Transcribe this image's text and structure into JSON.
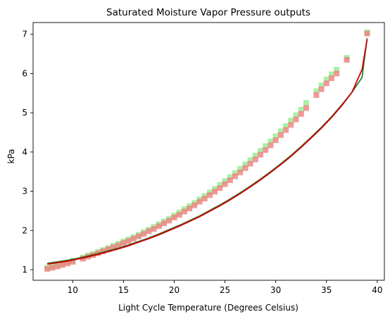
{
  "chart_data": {
    "type": "scatter",
    "title": "Saturated Moisture Vapor Pressure outputs",
    "xlabel": "Light Cycle Temperature (Degrees Celsius)",
    "ylabel": "kPa",
    "xlim": [
      6.1,
      40.7
    ],
    "ylim": [
      0.73,
      7.3
    ],
    "xticks": [
      10,
      15,
      20,
      25,
      30,
      35,
      40
    ],
    "yticks": [
      1,
      2,
      3,
      4,
      5,
      6,
      7
    ],
    "grid": false,
    "series": [
      {
        "kind": "scatter",
        "color": "#90ee90",
        "x": [
          7.5,
          8.0,
          8.5,
          9.0,
          9.5,
          10.0,
          11.0,
          11.5,
          12.0,
          12.5,
          13.0,
          13.5,
          14.0,
          14.5,
          15.0,
          15.5,
          16.0,
          16.5,
          17.0,
          17.5,
          18.0,
          18.5,
          19.0,
          19.5,
          20.0,
          20.5,
          21.0,
          21.5,
          22.0,
          22.5,
          23.0,
          23.5,
          24.0,
          24.5,
          25.0,
          25.5,
          26.0,
          26.5,
          27.0,
          27.5,
          28.0,
          28.5,
          29.0,
          29.5,
          30.0,
          30.5,
          31.0,
          31.5,
          32.0,
          32.5,
          33.0,
          34.0,
          34.5,
          35.0,
          35.5,
          36.0,
          37.0,
          39.0
        ],
        "y": [
          1.05,
          1.08,
          1.11,
          1.15,
          1.19,
          1.23,
          1.31,
          1.36,
          1.4,
          1.45,
          1.5,
          1.55,
          1.61,
          1.66,
          1.72,
          1.77,
          1.83,
          1.89,
          1.96,
          2.02,
          2.09,
          2.16,
          2.23,
          2.3,
          2.38,
          2.46,
          2.54,
          2.62,
          2.7,
          2.79,
          2.88,
          2.97,
          3.06,
          3.16,
          3.26,
          3.36,
          3.46,
          3.57,
          3.68,
          3.79,
          3.91,
          4.03,
          4.15,
          4.27,
          4.4,
          4.53,
          4.66,
          4.8,
          4.94,
          5.08,
          5.25,
          5.55,
          5.7,
          5.85,
          5.98,
          6.1,
          6.4,
          7.05
        ]
      },
      {
        "kind": "scatter",
        "color": "#f08080",
        "x": [
          7.5,
          8.0,
          8.5,
          9.0,
          9.5,
          10.0,
          11.0,
          11.5,
          12.0,
          12.5,
          13.0,
          13.5,
          14.0,
          14.5,
          15.0,
          15.5,
          16.0,
          16.5,
          17.0,
          17.5,
          18.0,
          18.5,
          19.0,
          19.5,
          20.0,
          20.5,
          21.0,
          21.5,
          22.0,
          22.5,
          23.0,
          23.5,
          24.0,
          24.5,
          25.0,
          25.5,
          26.0,
          26.5,
          27.0,
          27.5,
          28.0,
          28.5,
          29.0,
          29.5,
          30.0,
          30.5,
          31.0,
          31.5,
          32.0,
          32.5,
          33.0,
          34.0,
          34.5,
          35.0,
          35.5,
          36.0,
          37.0,
          39.0
        ],
        "y": [
          1.02,
          1.05,
          1.08,
          1.12,
          1.16,
          1.2,
          1.28,
          1.33,
          1.37,
          1.42,
          1.47,
          1.52,
          1.57,
          1.62,
          1.68,
          1.73,
          1.79,
          1.85,
          1.91,
          1.98,
          2.04,
          2.11,
          2.18,
          2.25,
          2.33,
          2.4,
          2.48,
          2.56,
          2.64,
          2.73,
          2.81,
          2.9,
          2.99,
          3.08,
          3.18,
          3.28,
          3.38,
          3.48,
          3.59,
          3.7,
          3.81,
          3.93,
          4.05,
          4.17,
          4.3,
          4.43,
          4.56,
          4.69,
          4.83,
          4.97,
          5.12,
          5.45,
          5.6,
          5.75,
          5.88,
          6.0,
          6.35,
          7.02
        ]
      },
      {
        "kind": "line",
        "color": "#2e7d32",
        "x": [
          7.5,
          8.5,
          9.5,
          10.5,
          11.5,
          12.5,
          13.5,
          14.5,
          15.5,
          16.5,
          17.5,
          18.5,
          19.5,
          20.5,
          21.5,
          22.5,
          23.5,
          24.5,
          25.5,
          26.5,
          27.5,
          28.5,
          29.5,
          30.5,
          31.5,
          32.5,
          33.5,
          34.5,
          35.5,
          36.5,
          37.5,
          38.5,
          39.0
        ],
        "y": [
          1.16,
          1.2,
          1.24,
          1.29,
          1.35,
          1.41,
          1.48,
          1.55,
          1.63,
          1.72,
          1.81,
          1.91,
          2.02,
          2.13,
          2.25,
          2.37,
          2.51,
          2.65,
          2.8,
          2.96,
          3.13,
          3.31,
          3.5,
          3.7,
          3.91,
          4.14,
          4.38,
          4.63,
          4.9,
          5.2,
          5.52,
          5.9,
          6.9
        ]
      },
      {
        "kind": "line",
        "color": "#cc0000",
        "x": [
          7.5,
          8.5,
          9.5,
          10.5,
          11.5,
          12.5,
          13.5,
          14.5,
          15.5,
          16.5,
          17.5,
          18.5,
          19.5,
          20.5,
          21.5,
          22.5,
          23.5,
          24.5,
          25.5,
          26.5,
          27.5,
          28.5,
          29.5,
          30.5,
          31.5,
          32.5,
          33.5,
          34.5,
          35.5,
          36.5,
          37.5,
          38.5,
          39.0
        ],
        "y": [
          1.14,
          1.18,
          1.22,
          1.27,
          1.33,
          1.39,
          1.46,
          1.53,
          1.61,
          1.7,
          1.79,
          1.89,
          2.0,
          2.11,
          2.23,
          2.35,
          2.49,
          2.63,
          2.78,
          2.94,
          3.11,
          3.29,
          3.48,
          3.68,
          3.89,
          4.12,
          4.36,
          4.61,
          4.88,
          5.18,
          5.52,
          6.1,
          6.87
        ]
      }
    ]
  }
}
